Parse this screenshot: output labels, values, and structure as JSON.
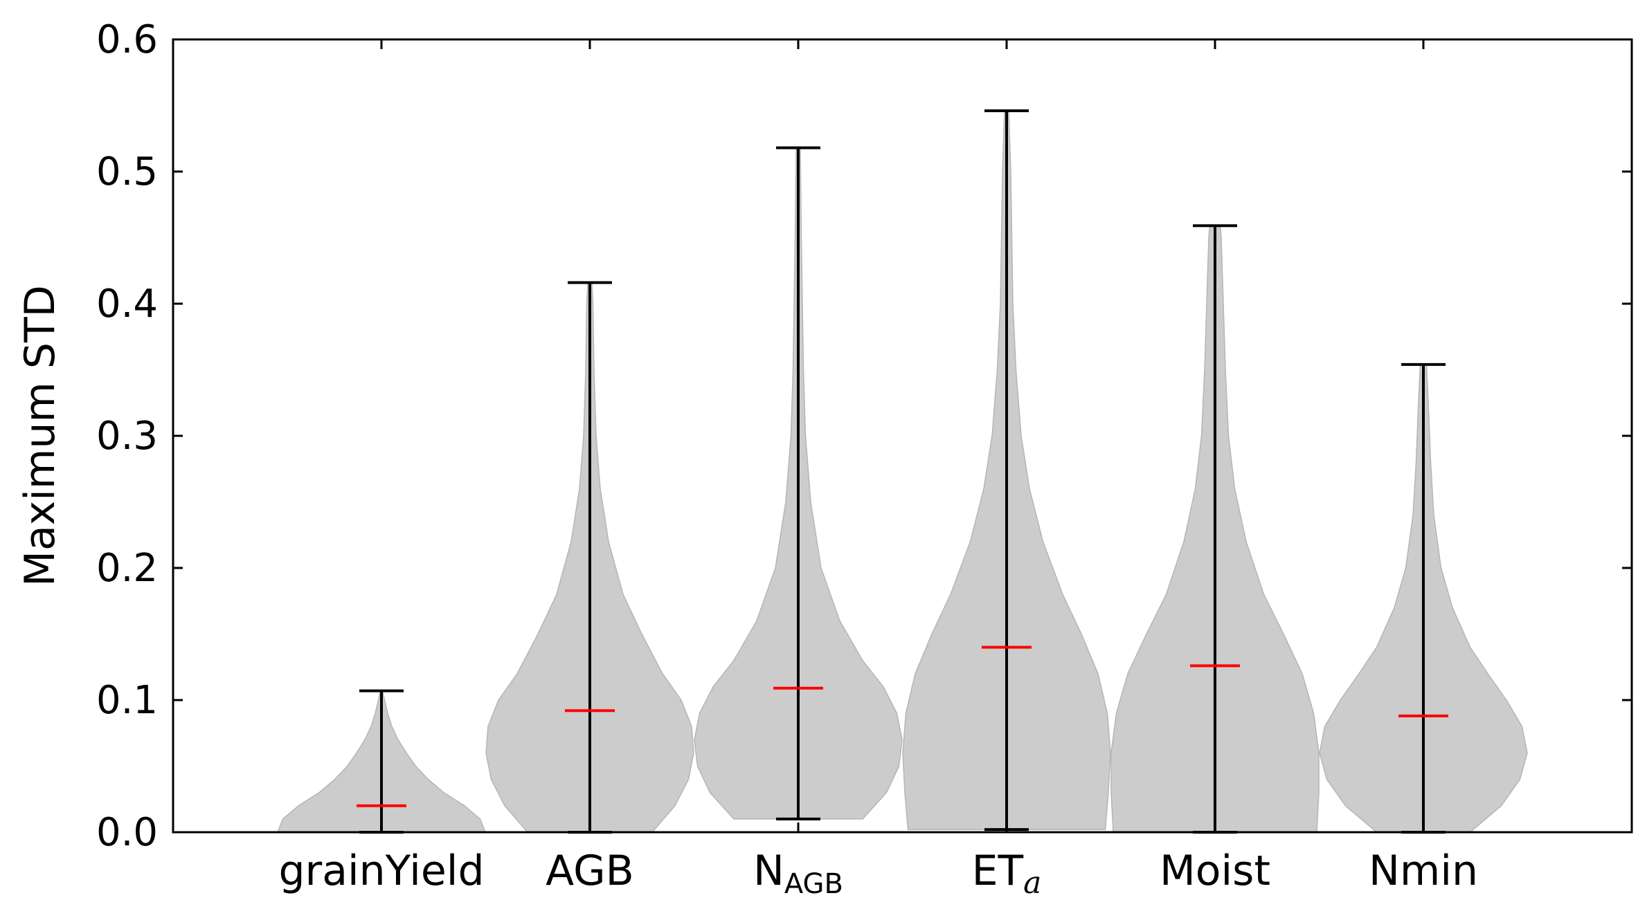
{
  "chart_data": {
    "type": "violin",
    "title": "",
    "xlabel": "",
    "ylabel": "Maximum STD",
    "ylim": [
      0.0,
      0.6
    ],
    "yticks": [
      "0.0",
      "0.1",
      "0.2",
      "0.3",
      "0.4",
      "0.5",
      "0.6"
    ],
    "grid": false,
    "violin_color": "#cccccc",
    "median_color": "#ff0000",
    "whisker_color": "#000000",
    "categories": [
      {
        "label": "grainYield",
        "min": 0.0,
        "max": 0.107,
        "median": 0.02,
        "profile": [
          [
            0.0,
            1.0
          ],
          [
            0.01,
            0.95
          ],
          [
            0.02,
            0.8
          ],
          [
            0.03,
            0.6
          ],
          [
            0.04,
            0.45
          ],
          [
            0.05,
            0.33
          ],
          [
            0.06,
            0.24
          ],
          [
            0.07,
            0.16
          ],
          [
            0.08,
            0.1
          ],
          [
            0.09,
            0.06
          ],
          [
            0.1,
            0.03
          ],
          [
            0.107,
            0.01
          ]
        ]
      },
      {
        "label": "AGB",
        "min": 0.0,
        "max": 0.416,
        "median": 0.092,
        "profile": [
          [
            0.0,
            0.6
          ],
          [
            0.02,
            0.82
          ],
          [
            0.04,
            0.95
          ],
          [
            0.06,
            1.0
          ],
          [
            0.08,
            0.98
          ],
          [
            0.1,
            0.88
          ],
          [
            0.12,
            0.7
          ],
          [
            0.15,
            0.5
          ],
          [
            0.18,
            0.32
          ],
          [
            0.22,
            0.18
          ],
          [
            0.26,
            0.1
          ],
          [
            0.3,
            0.06
          ],
          [
            0.35,
            0.04
          ],
          [
            0.4,
            0.03
          ],
          [
            0.416,
            0.02
          ]
        ]
      },
      {
        "label": "N_AGB",
        "label_main": "N",
        "label_sub": "AGB",
        "min": 0.01,
        "max": 0.518,
        "median": 0.109,
        "profile": [
          [
            0.01,
            0.62
          ],
          [
            0.03,
            0.85
          ],
          [
            0.05,
            0.97
          ],
          [
            0.07,
            1.0
          ],
          [
            0.09,
            0.95
          ],
          [
            0.11,
            0.82
          ],
          [
            0.13,
            0.62
          ],
          [
            0.16,
            0.4
          ],
          [
            0.2,
            0.22
          ],
          [
            0.25,
            0.12
          ],
          [
            0.3,
            0.07
          ],
          [
            0.35,
            0.05
          ],
          [
            0.4,
            0.04
          ],
          [
            0.45,
            0.03
          ],
          [
            0.518,
            0.02
          ]
        ]
      },
      {
        "label": "ET_a",
        "label_main": "ET",
        "label_sub": "a",
        "min": 0.002,
        "max": 0.546,
        "median": 0.14,
        "profile": [
          [
            0.002,
            0.95
          ],
          [
            0.03,
            0.98
          ],
          [
            0.06,
            1.0
          ],
          [
            0.09,
            0.97
          ],
          [
            0.12,
            0.88
          ],
          [
            0.15,
            0.72
          ],
          [
            0.18,
            0.54
          ],
          [
            0.22,
            0.35
          ],
          [
            0.26,
            0.22
          ],
          [
            0.3,
            0.14
          ],
          [
            0.35,
            0.09
          ],
          [
            0.4,
            0.06
          ],
          [
            0.45,
            0.05
          ],
          [
            0.5,
            0.04
          ],
          [
            0.546,
            0.02
          ]
        ]
      },
      {
        "label": "Moist",
        "min": 0.0,
        "max": 0.459,
        "median": 0.126,
        "profile": [
          [
            0.0,
            0.98
          ],
          [
            0.03,
            1.0
          ],
          [
            0.06,
            1.0
          ],
          [
            0.09,
            0.95
          ],
          [
            0.12,
            0.84
          ],
          [
            0.15,
            0.66
          ],
          [
            0.18,
            0.47
          ],
          [
            0.22,
            0.3
          ],
          [
            0.26,
            0.19
          ],
          [
            0.3,
            0.13
          ],
          [
            0.35,
            0.1
          ],
          [
            0.4,
            0.08
          ],
          [
            0.45,
            0.06
          ],
          [
            0.459,
            0.05
          ]
        ]
      },
      {
        "label": "Nmin",
        "min": 0.0,
        "max": 0.354,
        "median": 0.088,
        "profile": [
          [
            0.0,
            0.45
          ],
          [
            0.02,
            0.75
          ],
          [
            0.04,
            0.93
          ],
          [
            0.06,
            1.0
          ],
          [
            0.08,
            0.95
          ],
          [
            0.1,
            0.8
          ],
          [
            0.12,
            0.62
          ],
          [
            0.14,
            0.45
          ],
          [
            0.17,
            0.28
          ],
          [
            0.2,
            0.17
          ],
          [
            0.24,
            0.1
          ],
          [
            0.28,
            0.07
          ],
          [
            0.32,
            0.05
          ],
          [
            0.354,
            0.03
          ]
        ]
      }
    ]
  }
}
